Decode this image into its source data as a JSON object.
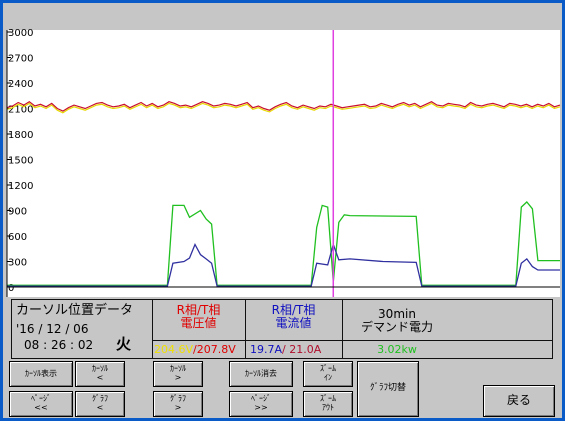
{
  "chart_data": {
    "type": "line",
    "y_ticks": [
      "3000",
      "2700",
      "2400",
      "2100",
      "1800",
      "1500",
      "1200",
      "900",
      "600",
      "300",
      "0"
    ],
    "ylim": [
      0,
      3000
    ],
    "grid": false,
    "cursor_x_fraction": 0.59,
    "series": [
      {
        "color": "#e8d800",
        "values": [
          2090,
          2110,
          2150,
          2120,
          2160,
          2110,
          2130,
          2100,
          2140,
          2080,
          2050,
          2090,
          2120,
          2100,
          2080,
          2110,
          2140,
          2150,
          2120,
          2100,
          2110,
          2130,
          2090,
          2120,
          2150,
          2110,
          2140,
          2100,
          2120,
          2160,
          2140,
          2110,
          2120,
          2100,
          2130,
          2160,
          2140,
          2110,
          2120,
          2140,
          2130,
          2110,
          2130,
          2150,
          2090,
          2110,
          2080,
          2060,
          2100,
          2130,
          2150,
          2110,
          2090,
          2120,
          2100,
          2080,
          2110,
          2100,
          2130,
          2110,
          2090,
          2100,
          2110,
          2120,
          2130,
          2100,
          2110,
          2140,
          2120,
          2100,
          2130,
          2150,
          2120,
          2140,
          2100,
          2130,
          2160,
          2120,
          2110,
          2140,
          2130,
          2120,
          2100,
          2150,
          2120,
          2110,
          2130,
          2140,
          2120,
          2100,
          2140,
          2130,
          2110,
          2130,
          2100,
          2130,
          2110,
          2140,
          2100,
          2120
        ]
      },
      {
        "color": "#c8102e",
        "values": [
          2110,
          2130,
          2170,
          2140,
          2180,
          2130,
          2150,
          2120,
          2160,
          2100,
          2070,
          2110,
          2140,
          2120,
          2100,
          2130,
          2160,
          2170,
          2140,
          2120,
          2130,
          2150,
          2110,
          2140,
          2170,
          2130,
          2160,
          2120,
          2140,
          2180,
          2160,
          2130,
          2140,
          2120,
          2150,
          2180,
          2160,
          2130,
          2140,
          2160,
          2150,
          2130,
          2150,
          2170,
          2110,
          2130,
          2100,
          2080,
          2120,
          2150,
          2170,
          2130,
          2110,
          2140,
          2120,
          2100,
          2130,
          2120,
          2150,
          2130,
          2110,
          2120,
          2130,
          2140,
          2150,
          2120,
          2130,
          2160,
          2140,
          2120,
          2150,
          2170,
          2140,
          2160,
          2120,
          2150,
          2180,
          2140,
          2130,
          2160,
          2150,
          2140,
          2120,
          2170,
          2140,
          2130,
          2150,
          2160,
          2140,
          2120,
          2160,
          2150,
          2130,
          2150,
          2120,
          2150,
          2130,
          2160,
          2120,
          2140
        ]
      },
      {
        "color": "#20c020",
        "values": [
          [
            0,
            20
          ],
          [
            29,
            20
          ],
          [
            30,
            960
          ],
          [
            32,
            960
          ],
          [
            33,
            820
          ],
          [
            35,
            900
          ],
          [
            36,
            800
          ],
          [
            37,
            740
          ],
          [
            38,
            20
          ],
          [
            55,
            20
          ],
          [
            56,
            700
          ],
          [
            57,
            960
          ],
          [
            58,
            940
          ],
          [
            59,
            60
          ],
          [
            60,
            760
          ],
          [
            61,
            850
          ],
          [
            62,
            840
          ],
          [
            74,
            830
          ],
          [
            75,
            20
          ],
          [
            92,
            20
          ],
          [
            93,
            940
          ],
          [
            94,
            1000
          ],
          [
            95,
            920
          ],
          [
            96,
            310
          ],
          [
            100,
            310
          ]
        ]
      },
      {
        "color": "#3030a0",
        "values": [
          [
            0,
            10
          ],
          [
            29,
            10
          ],
          [
            30,
            280
          ],
          [
            32,
            300
          ],
          [
            33,
            340
          ],
          [
            34,
            500
          ],
          [
            35,
            380
          ],
          [
            36,
            330
          ],
          [
            37,
            280
          ],
          [
            38,
            10
          ],
          [
            55,
            10
          ],
          [
            56,
            280
          ],
          [
            58,
            260
          ],
          [
            59,
            500
          ],
          [
            60,
            320
          ],
          [
            62,
            330
          ],
          [
            68,
            300
          ],
          [
            74,
            290
          ],
          [
            75,
            10
          ],
          [
            92,
            10
          ],
          [
            93,
            280
          ],
          [
            94,
            330
          ],
          [
            95,
            240
          ],
          [
            96,
            200
          ],
          [
            100,
            200
          ]
        ]
      }
    ]
  },
  "cursor_panel": {
    "title": "カーソル位置データ",
    "date": "'16 / 12 / 06",
    "time": "08 : 26 : 02",
    "weekday": "火"
  },
  "voltage": {
    "label_line1": "R相/T相",
    "label_line2": "電圧値",
    "value_r": "204.6V",
    "slash": "/",
    "value_t": "207.8V"
  },
  "current": {
    "label_line1": "R相/T相",
    "label_line2": "電流値",
    "value_r": "19.7A",
    "slash": "/ ",
    "value_t": "21.0A"
  },
  "demand": {
    "label_line1": "30min",
    "label_line2": "デマンド電力",
    "value": "3.02kw"
  },
  "buttons": {
    "cursor_display": "ｶｰｿﾙ表示",
    "cursor_left_l1": "ｶｰｿﾙ",
    "cursor_left_l2": "<",
    "cursor_right_l1": "ｶｰｿﾙ",
    "cursor_right_l2": ">",
    "cursor_clear": "ｶｰｿﾙ消去",
    "zoom_in_l1": "ｽﾞｰﾑ",
    "zoom_in_l2": "ｲﾝ",
    "page_prev_l1": "ﾍﾟｰｼﾞ",
    "page_prev_l2": "<<",
    "graph_left_l1": "ｸﾞﾗﾌ",
    "graph_left_l2": "<",
    "graph_right_l1": "ｸﾞﾗﾌ",
    "graph_right_l2": ">",
    "page_next_l1": "ﾍﾟｰｼﾞ",
    "page_next_l2": ">>",
    "zoom_out_l1": "ｽﾞｰﾑ",
    "zoom_out_l2": "ｱｳﾄ",
    "graph_switch": "ｸﾞﾗﾌ切替",
    "back": "戻る"
  }
}
